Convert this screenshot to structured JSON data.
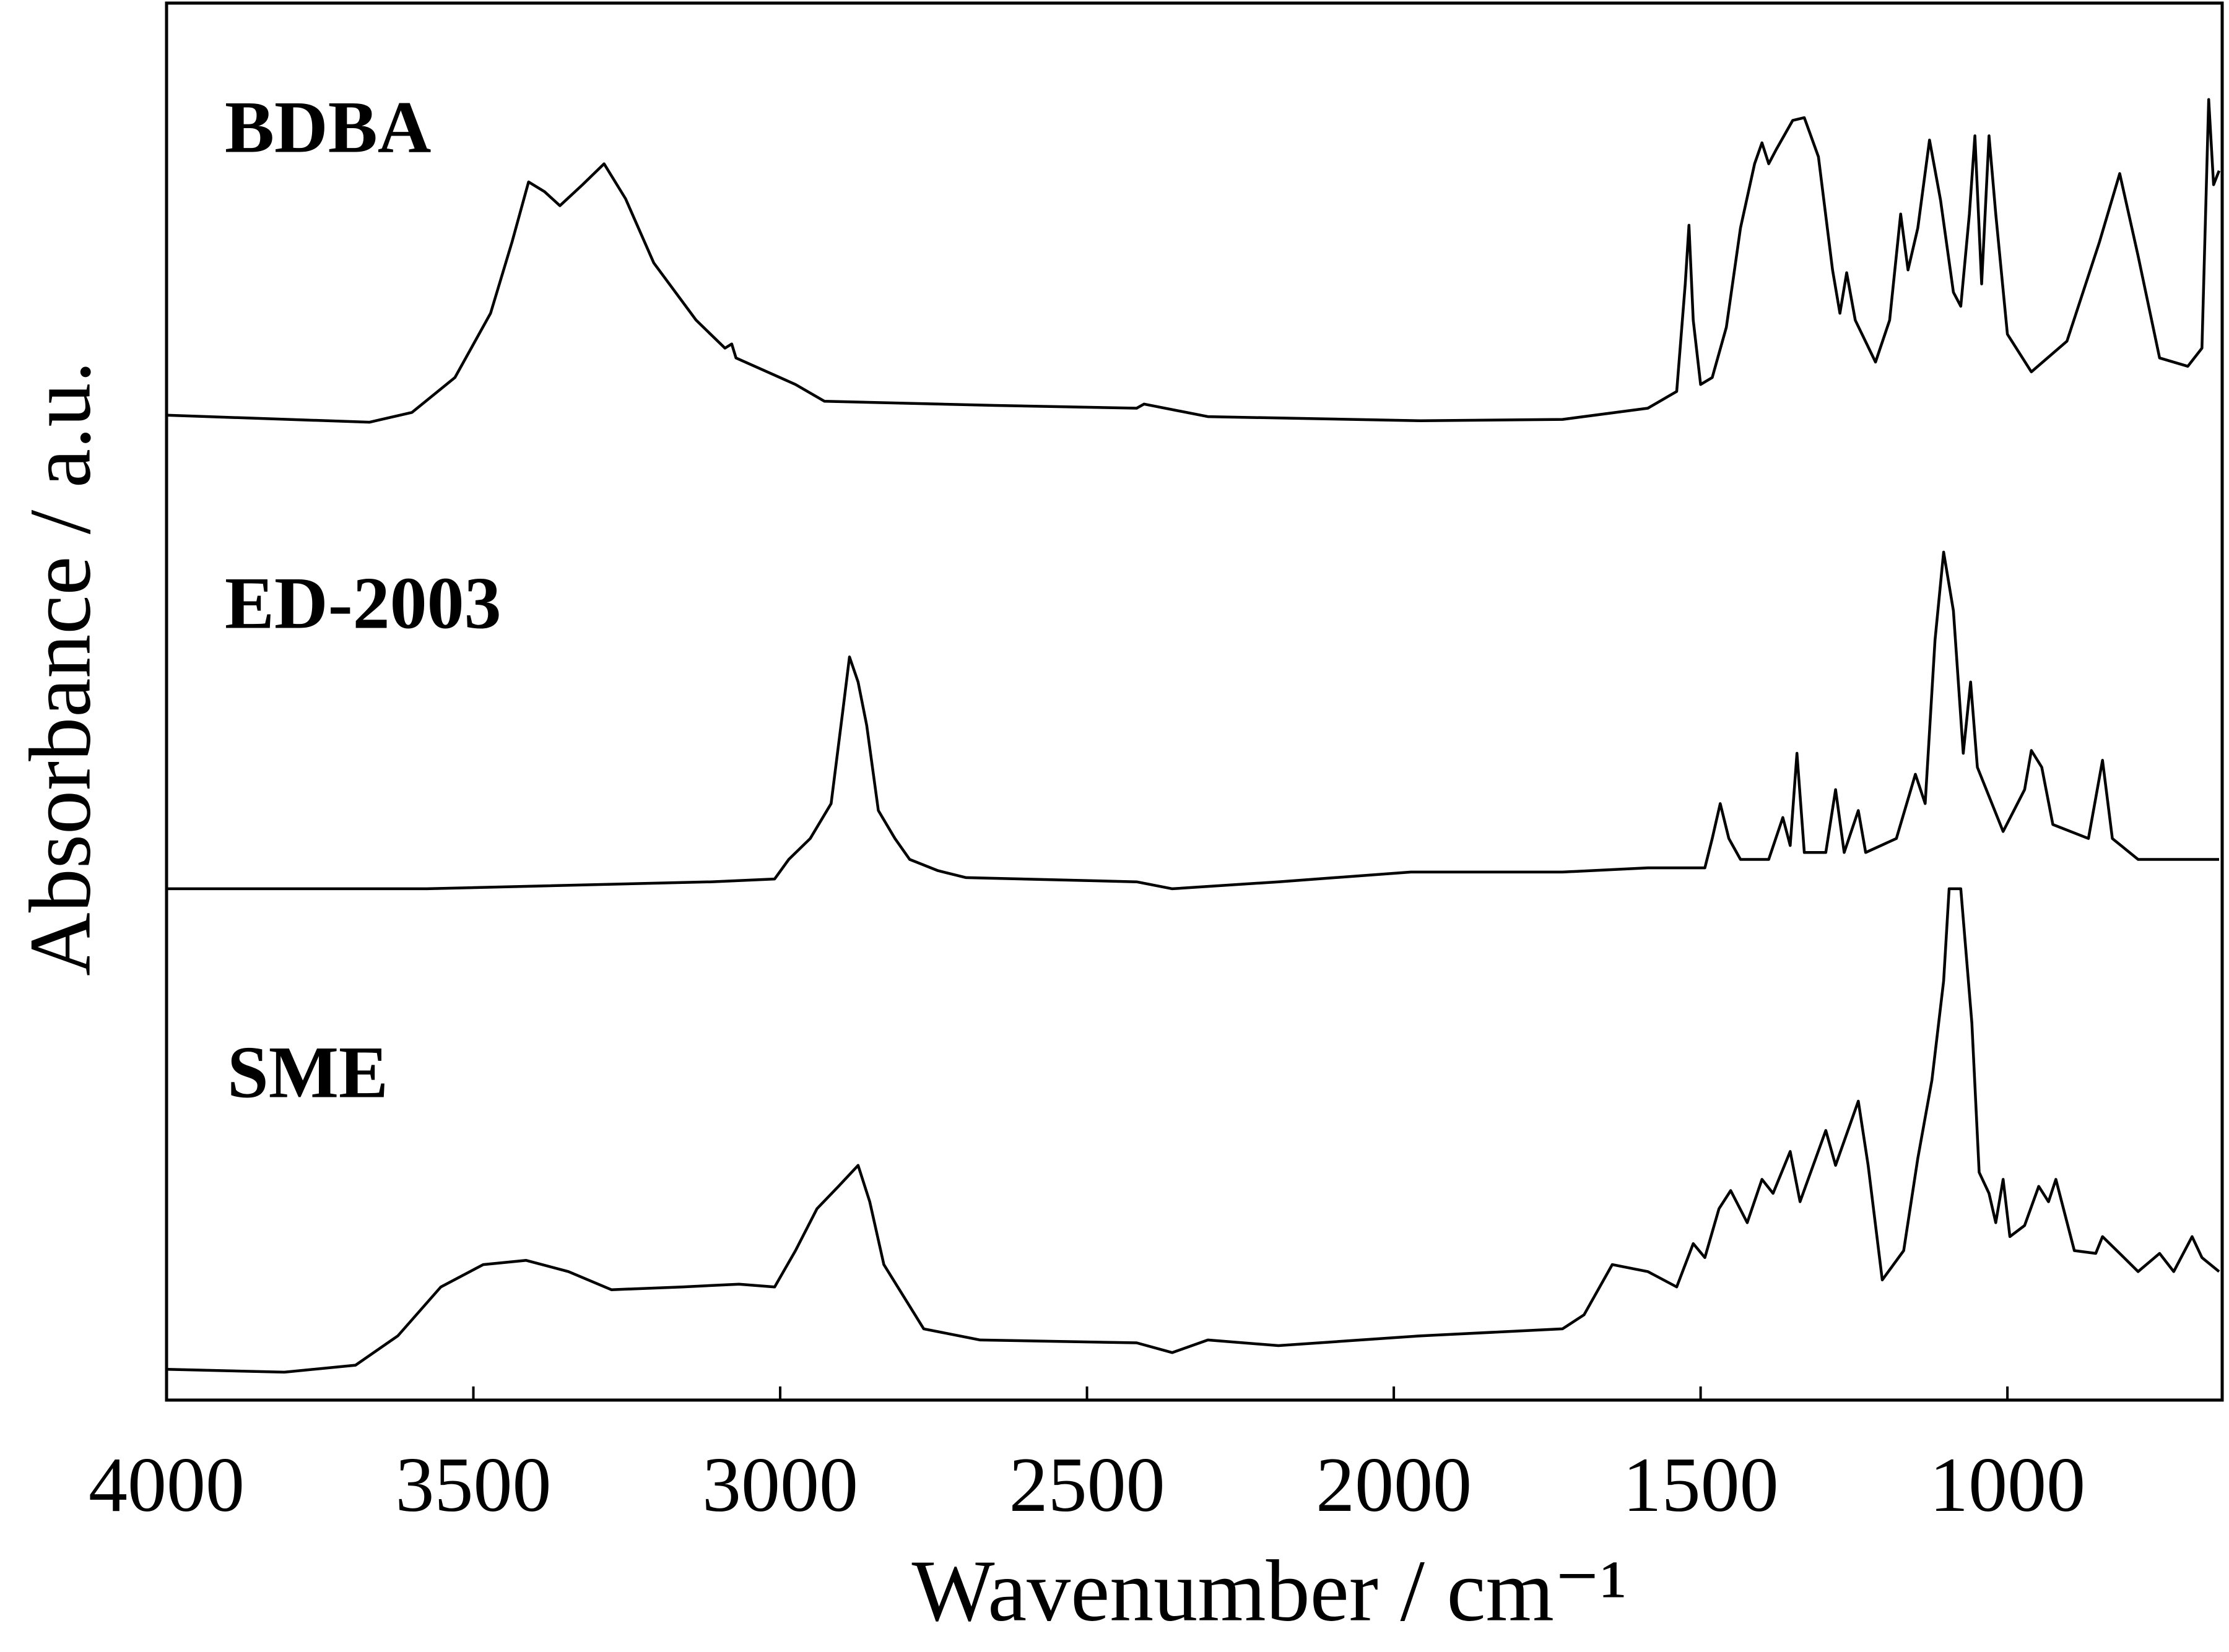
{
  "chart_data": {
    "type": "line",
    "x_label": "Wavenumber / cm⁻¹",
    "y_label": "Absorbance / a.u.",
    "xlim": [
      4000,
      650
    ],
    "xticks": [
      4000,
      3500,
      3000,
      2500,
      2000,
      1500,
      1000
    ],
    "ylim": [
      0,
      100
    ],
    "color": "#000000",
    "series": [
      {
        "name": "BDBA",
        "color": "#000000",
        "x": [
          4000,
          3669,
          3600,
          3530,
          3472,
          3437,
          3410,
          3384,
          3359,
          3322,
          3287,
          3252,
          3206,
          3137,
          3090,
          3079,
          3072,
          3021,
          2975,
          2928,
          2836,
          2650,
          2419,
          2407,
          2303,
          1956,
          1725,
          1586,
          1539,
          1525,
          1519,
          1512,
          1500,
          1481,
          1458,
          1435,
          1412,
          1400,
          1389,
          1377,
          1350,
          1331,
          1308,
          1285,
          1273,
          1262,
          1248,
          1215,
          1192,
          1174,
          1162,
          1146,
          1127,
          1109,
          1088,
          1076,
          1062,
          1053,
          1042,
          1030,
          1019,
          1000,
          961,
          903,
          850,
          817,
          787,
          752,
          706,
          683,
          672,
          664,
          655
        ],
        "values": [
          70.5,
          70.0,
          70.7,
          73.2,
          77.8,
          82.9,
          87.2,
          86.5,
          85.5,
          87.0,
          88.5,
          86.0,
          81.4,
          77.3,
          75.3,
          75.6,
          74.6,
          73.6,
          72.7,
          71.5,
          71.4,
          71.2,
          71.0,
          71.3,
          70.4,
          70.1,
          70.2,
          71.0,
          72.2,
          79.9,
          84.1,
          77.3,
          72.7,
          73.2,
          76.8,
          83.9,
          88.5,
          90.0,
          88.5,
          89.5,
          91.6,
          91.8,
          89.0,
          80.9,
          77.8,
          80.7,
          77.3,
          74.3,
          77.3,
          84.9,
          80.9,
          83.9,
          90.2,
          85.9,
          79.3,
          78.3,
          84.9,
          90.5,
          79.9,
          90.5,
          84.9,
          76.3,
          73.6,
          75.8,
          82.9,
          87.8,
          81.9,
          74.6,
          74.0,
          75.3,
          93.1,
          87.0,
          88.0
        ]
      },
      {
        "name": "ED-2003",
        "color": "#000000",
        "x": [
          4000,
          3576,
          3113,
          3009,
          2986,
          2951,
          2917,
          2898,
          2887,
          2873,
          2859,
          2840,
          2813,
          2789,
          2743,
          2697,
          2419,
          2361,
          2188,
          1972,
          1725,
          1586,
          1493,
          1481,
          1468,
          1454,
          1435,
          1389,
          1366,
          1354,
          1343,
          1331,
          1296,
          1280,
          1266,
          1243,
          1231,
          1181,
          1150,
          1134,
          1118,
          1104,
          1088,
          1072,
          1060,
          1049,
          1007,
          972,
          961,
          944,
          926,
          868,
          845,
          829,
          787,
          655
        ],
        "values": [
          36.6,
          36.6,
          37.1,
          37.3,
          38.7,
          40.2,
          42.7,
          49.3,
          53.2,
          51.4,
          48.3,
          42.2,
          40.2,
          38.7,
          37.9,
          37.4,
          37.1,
          36.6,
          37.1,
          37.8,
          37.8,
          38.1,
          38.1,
          40.2,
          42.7,
          40.2,
          38.7,
          38.7,
          41.7,
          39.7,
          46.3,
          39.2,
          39.2,
          43.7,
          39.2,
          42.2,
          39.2,
          40.2,
          44.8,
          42.7,
          54.4,
          60.7,
          56.5,
          46.3,
          51.4,
          45.3,
          40.7,
          43.7,
          46.5,
          45.3,
          41.2,
          40.2,
          45.8,
          40.2,
          38.7,
          38.7
        ]
      },
      {
        "name": "SME",
        "color": "#000000",
        "x": [
          4000,
          3808,
          3692,
          3623,
          3553,
          3484,
          3414,
          3345,
          3275,
          3160,
          3067,
          3009,
          2975,
          2940,
          2905,
          2873,
          2854,
          2831,
          2766,
          2674,
          2419,
          2361,
          2303,
          2188,
          1956,
          1725,
          1690,
          1644,
          1586,
          1539,
          1512,
          1493,
          1470,
          1451,
          1424,
          1400,
          1382,
          1354,
          1338,
          1296,
          1280,
          1243,
          1227,
          1204,
          1169,
          1146,
          1123,
          1104,
          1095,
          1076,
          1058,
          1046,
          1030,
          1019,
          1007,
          996,
          972,
          949,
          933,
          921,
          891,
          856,
          845,
          810,
          787,
          752,
          729,
          699,
          683,
          655
        ],
        "values": [
          2.2,
          2.0,
          2.5,
          4.6,
          8.1,
          9.7,
          10.0,
          9.2,
          7.9,
          8.1,
          8.3,
          8.1,
          10.7,
          13.7,
          15.3,
          16.8,
          14.2,
          9.7,
          5.1,
          4.3,
          4.1,
          3.4,
          4.3,
          3.9,
          4.6,
          5.1,
          6.1,
          9.7,
          9.2,
          8.1,
          11.2,
          10.2,
          13.7,
          15.0,
          12.7,
          15.8,
          14.8,
          17.8,
          14.2,
          19.3,
          16.8,
          21.4,
          16.8,
          8.6,
          10.7,
          17.3,
          22.9,
          30.0,
          36.6,
          36.6,
          27.0,
          16.3,
          14.8,
          12.7,
          15.8,
          11.7,
          12.5,
          15.3,
          14.2,
          15.8,
          10.7,
          10.5,
          11.7,
          10.2,
          9.2,
          10.5,
          9.2,
          11.7,
          10.2,
          9.2
        ]
      }
    ]
  }
}
